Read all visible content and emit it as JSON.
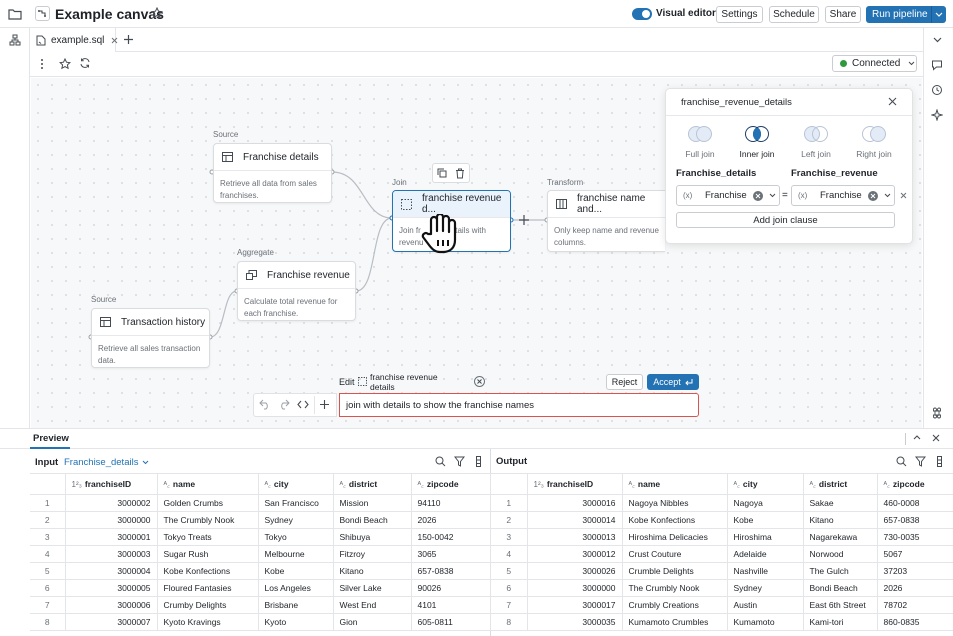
{
  "header": {
    "title": "Example canvas",
    "visual_editor_label": "Visual editor",
    "visual_editor_on": true,
    "settings_label": "Settings",
    "schedule_label": "Schedule",
    "share_label": "Share",
    "run_label": "Run pipeline"
  },
  "tabs": {
    "file": "example.sql"
  },
  "toolbar": {
    "status": "Connected"
  },
  "colors": {
    "primary": "#2272b4",
    "connected": "#2e9a3d",
    "grid_dot": "#d6d9dd"
  },
  "nodes": {
    "franchise_details": {
      "type": "Source",
      "title": "Franchise details",
      "desc": "Retrieve all data from sales franchises."
    },
    "franchise_revenue": {
      "type": "Aggregate",
      "title": "Franchise revenue",
      "desc": "Calculate total revenue for each franchise."
    },
    "transaction_history": {
      "type": "Source",
      "title": "Transaction history",
      "desc": "Retrieve all sales transaction data."
    },
    "join": {
      "type": "Join",
      "title": "franchise revenue d...",
      "desc_a": "Join fr",
      "desc_b": "etails with",
      "desc_c": "revenu"
    },
    "transform": {
      "type": "Transform",
      "title": "franchise name and...",
      "desc": "Only keep name and revenue columns."
    }
  },
  "join_panel": {
    "title": "franchise_revenue_details",
    "options": [
      "Full join",
      "Inner join",
      "Left join",
      "Right join"
    ],
    "selected": "Inner join",
    "left_table": "Franchise_details",
    "right_table": "Franchise_revenue",
    "left_field": "Franchise",
    "right_field": "Franchise",
    "operator": "=",
    "add_clause": "Add join clause"
  },
  "edit_bar": {
    "edit_label": "Edit",
    "chip": "franchise revenue details",
    "reject": "Reject",
    "accept": "Accept",
    "prompt": "join with details to show the franchise names"
  },
  "preview": {
    "title": "Preview",
    "input_label": "Input",
    "input_table": "Franchise_details",
    "output_label": "Output",
    "input_columns": [
      "franchiseID",
      "name",
      "city",
      "district",
      "zipcode"
    ],
    "input_rows": [
      [
        "1",
        "3000002",
        "Golden Crumbs",
        "San Francisco",
        "Mission",
        "94110"
      ],
      [
        "2",
        "3000000",
        "The Crumbly Nook",
        "Sydney",
        "Bondi Beach",
        "2026"
      ],
      [
        "3",
        "3000001",
        "Tokyo Treats",
        "Tokyo",
        "Shibuya",
        "150-0042"
      ],
      [
        "4",
        "3000003",
        "Sugar Rush",
        "Melbourne",
        "Fitzroy",
        "3065"
      ],
      [
        "5",
        "3000004",
        "Kobe Konfections",
        "Kobe",
        "Kitano",
        "657-0838"
      ],
      [
        "6",
        "3000005",
        "Floured Fantasies",
        "Los Angeles",
        "Silver Lake",
        "90026"
      ],
      [
        "7",
        "3000006",
        "Crumby Delights",
        "Brisbane",
        "West End",
        "4101"
      ],
      [
        "8",
        "3000007",
        "Kyoto Kravings",
        "Kyoto",
        "Gion",
        "605-0811"
      ]
    ],
    "output_columns": [
      "franchiseID",
      "name",
      "city",
      "district",
      "zipcode"
    ],
    "output_rows": [
      [
        "1",
        "3000016",
        "Nagoya Nibbles",
        "Nagoya",
        "Sakae",
        "460-0008"
      ],
      [
        "2",
        "3000014",
        "Kobe Konfections",
        "Kobe",
        "Kitano",
        "657-0838"
      ],
      [
        "3",
        "3000013",
        "Hiroshima Delicacies",
        "Hiroshima",
        "Nagarekawa",
        "730-0035"
      ],
      [
        "4",
        "3000012",
        "Crust Couture",
        "Adelaide",
        "Norwood",
        "5067"
      ],
      [
        "5",
        "3000026",
        "Crumble Delights",
        "Nashville",
        "The Gulch",
        "37203"
      ],
      [
        "6",
        "3000000",
        "The Crumbly Nook",
        "Sydney",
        "Bondi Beach",
        "2026"
      ],
      [
        "7",
        "3000017",
        "Crumbly Creations",
        "Austin",
        "East 6th Street",
        "78702"
      ],
      [
        "8",
        "3000035",
        "Kumamoto Crumbles",
        "Kumamoto",
        "Kami-tori",
        "860-0835"
      ]
    ]
  }
}
